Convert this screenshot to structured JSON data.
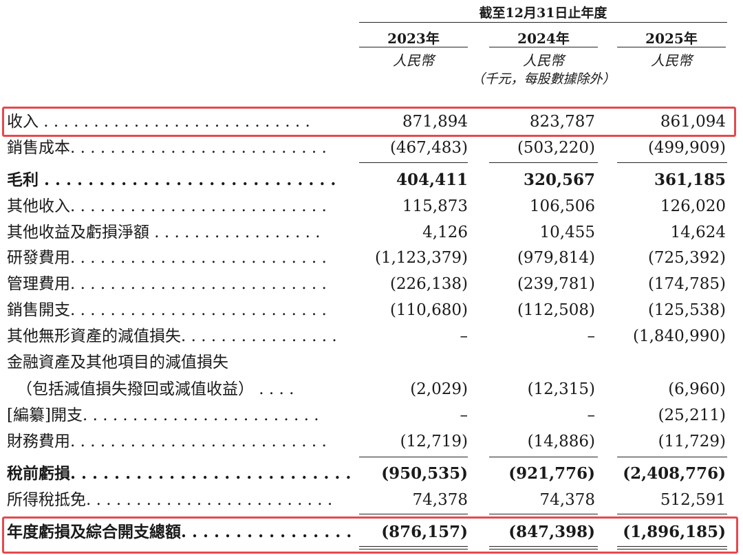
{
  "header": {
    "period": "截至12月31日止年度",
    "columns": [
      {
        "year": "2023年",
        "currency": "人民幣"
      },
      {
        "year": "2024年",
        "currency": "人民幣"
      },
      {
        "year": "2025年",
        "currency": "人民幣"
      }
    ],
    "unit_note": "（千元，每股數據除外）"
  },
  "rows": [
    {
      "label": "收入 . . . . . . . . . . . . . . . . . . . . . . . . . . .",
      "v": [
        "871,894",
        "823,787",
        "861,094"
      ]
    },
    {
      "label": "銷售成本. . . . . . . . . . . . . . . . . . . . . . . . . .",
      "v": [
        "(467,483)",
        "(503,220)",
        "(499,909)"
      ]
    },
    {
      "label": "毛利 . . . . . . . . . . . . . . . . . . . . . . . . . . .",
      "v": [
        "404,411",
        "320,567",
        "361,185"
      ]
    },
    {
      "label": "其他收入. . . . . . . . . . . . . . . . . . . . . . . . . .",
      "v": [
        "115,873",
        "106,506",
        "126,020"
      ]
    },
    {
      "label": "其他收益及虧損淨額 . . . . . . . . . . . . . . . . .",
      "v": [
        "4,126",
        "10,455",
        "14,624"
      ]
    },
    {
      "label": "研發費用. . . . . . . . . . . . . . . . . . . . . . . . . .",
      "v": [
        "(1,123,379)",
        "(979,814)",
        "(725,392)"
      ]
    },
    {
      "label": "管理費用. . . . . . . . . . . . . . . . . . . . . . . . . .",
      "v": [
        "(226,138)",
        "(239,781)",
        "(174,785)"
      ]
    },
    {
      "label": "銷售開支. . . . . . . . . . . . . . . . . . . . . . . . . .",
      "v": [
        "(110,680)",
        "(112,508)",
        "(125,538)"
      ]
    },
    {
      "label": "其他無形資產的減值損失. . . . . . . . . . . . . . . .",
      "v": [
        "–",
        "–",
        "(1,840,990)"
      ]
    },
    {
      "label": "金融資產及其他項目的減值損失",
      "v": [
        "",
        "",
        ""
      ]
    },
    {
      "label": "（包括減值損失撥回或減值收益） . . . .",
      "v": [
        "(2,029)",
        "(12,315)",
        "(6,960)"
      ]
    },
    {
      "label": "[編纂]開支. . . . . . . . . . . . . . . . . . . . . . . .",
      "v": [
        "–",
        "–",
        "(25,211)"
      ]
    },
    {
      "label": "財務費用. . . . . . . . . . . . . . . . . . . . . . . . . .",
      "v": [
        "(12,719)",
        "(14,886)",
        "(11,729)"
      ]
    },
    {
      "label": "稅前虧損. . . . . . . . . . . . . . . . . . . . . . . . . .",
      "v": [
        "(950,535)",
        "(921,776)",
        "(2,408,776)"
      ]
    },
    {
      "label": "所得稅抵免. . . . . . . . . . . . . . . . . . . . . . . . .",
      "v": [
        "74,378",
        "74,378",
        "512,591"
      ]
    },
    {
      "label": "年度虧損及綜合開支總額. . . . . . . . . . . . . . . .",
      "v": [
        "(876,157)",
        "(847,398)",
        "(1,896,185)"
      ]
    }
  ],
  "highlight_color": "#e5484d"
}
